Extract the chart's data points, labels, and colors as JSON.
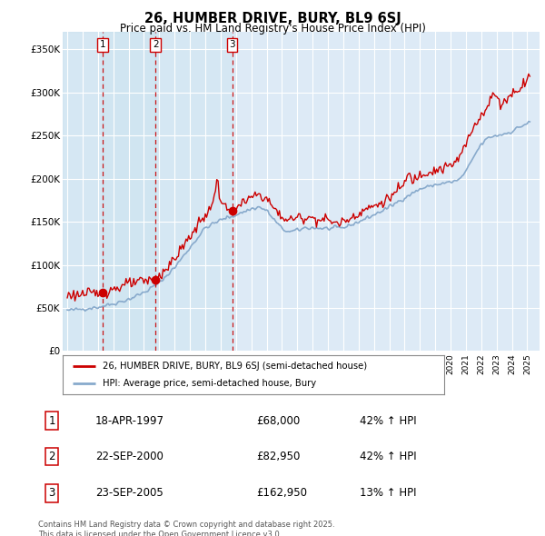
{
  "title": "26, HUMBER DRIVE, BURY, BL9 6SJ",
  "subtitle": "Price paid vs. HM Land Registry's House Price Index (HPI)",
  "legend_line1": "26, HUMBER DRIVE, BURY, BL9 6SJ (semi-detached house)",
  "legend_line2": "HPI: Average price, semi-detached house, Bury",
  "footer": "Contains HM Land Registry data © Crown copyright and database right 2025.\nThis data is licensed under the Open Government Licence v3.0.",
  "sale_color": "#cc0000",
  "hpi_color": "#88aacc",
  "hpi_fill_color": "#ccdcee",
  "background_color": "#ddeaf6",
  "grid_color": "#ffffff",
  "ylim": [
    0,
    370000
  ],
  "yticks": [
    0,
    50000,
    100000,
    150000,
    200000,
    250000,
    300000,
    350000
  ],
  "ytick_labels": [
    "£0",
    "£50K",
    "£100K",
    "£150K",
    "£200K",
    "£250K",
    "£300K",
    "£350K"
  ],
  "sale_points": [
    {
      "date": 1997.3,
      "price": 68000,
      "label": "1"
    },
    {
      "date": 2000.75,
      "price": 82950,
      "label": "2"
    },
    {
      "date": 2005.75,
      "price": 162950,
      "label": "3"
    }
  ],
  "transaction_table": [
    {
      "num": "1",
      "date": "18-APR-1997",
      "price": "£68,000",
      "change": "42% ↑ HPI"
    },
    {
      "num": "2",
      "date": "22-SEP-2000",
      "price": "£82,950",
      "change": "42% ↑ HPI"
    },
    {
      "num": "3",
      "date": "23-SEP-2005",
      "price": "£162,950",
      "change": "13% ↑ HPI"
    }
  ],
  "xlim": [
    1994.7,
    2025.8
  ]
}
